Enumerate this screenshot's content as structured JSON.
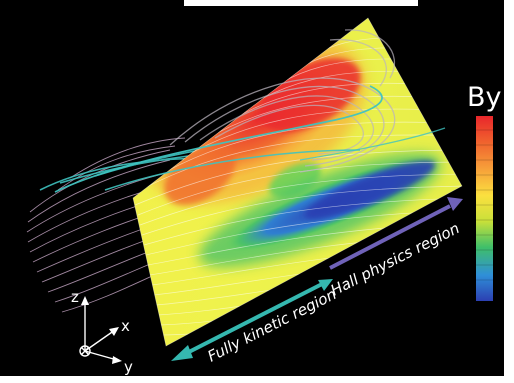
{
  "colorbar": {
    "label": "By",
    "stops": [
      "#e8262b",
      "#f0622e",
      "#f7a23a",
      "#fbe03f",
      "#c8e03a",
      "#3fbf6a",
      "#2f8fd8",
      "#2c3fb2"
    ]
  },
  "regions": {
    "kinetic": "Fully kinetic region",
    "hall": "Hall physics region"
  },
  "axes": {
    "z": "z",
    "x": "x",
    "y": "y"
  },
  "colors": {
    "background": "#000000",
    "kinetic_arrow": "#35b8b0",
    "hall_arrow": "#6f62b8",
    "field_line_cyan": "#3fc3c0",
    "field_line_pink": "#c9a9c8"
  }
}
